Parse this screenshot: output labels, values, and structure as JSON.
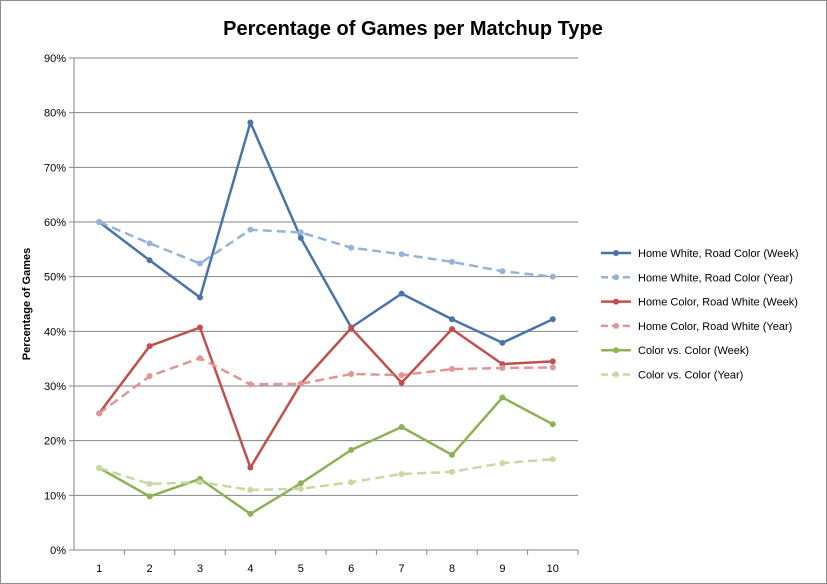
{
  "chart_data": {
    "type": "line",
    "title": "Percentage of Games per Matchup Type",
    "xlabel": "",
    "ylabel": "Percentage of Games",
    "x": [
      1,
      2,
      3,
      4,
      5,
      6,
      7,
      8,
      9,
      10
    ],
    "ylim": [
      0,
      90
    ],
    "yticks": [
      "0%",
      "10%",
      "20%",
      "30%",
      "40%",
      "50%",
      "60%",
      "70%",
      "80%",
      "90%"
    ],
    "grid": "horizontal",
    "legend_position": "right",
    "series": [
      {
        "name": "Home White, Road Color (Week)",
        "color": "#4a74a8",
        "style": "solid",
        "values": [
          60,
          53,
          46.2,
          78.2,
          57.1,
          40.7,
          46.9,
          42.2,
          37.9,
          42.2
        ]
      },
      {
        "name": "Home White, Road Color (Year)",
        "color": "#95b3d7",
        "style": "dashed",
        "values": [
          60,
          56.1,
          52.4,
          58.6,
          58.1,
          55.3,
          54.1,
          52.7,
          51,
          50
        ]
      },
      {
        "name": "Home Color, Road White (Week)",
        "color": "#c0504d",
        "style": "solid",
        "values": [
          25,
          37.3,
          40.7,
          15.1,
          30.4,
          40.6,
          30.6,
          40.4,
          34,
          34.5
        ]
      },
      {
        "name": "Home Color, Road White (Year)",
        "color": "#df9796",
        "style": "dashed",
        "values": [
          25,
          31.8,
          35.1,
          30.3,
          30.4,
          32.2,
          32,
          33.1,
          33.3,
          33.4
        ]
      },
      {
        "name": "Color vs. Color (Week)",
        "color": "#8db255",
        "style": "solid",
        "values": [
          15,
          9.8,
          13,
          6.6,
          12.2,
          18.3,
          22.5,
          17.4,
          27.9,
          23
        ]
      },
      {
        "name": "Color vs. Color (Year)",
        "color": "#c5d9a0",
        "style": "dashed",
        "values": [
          15,
          12.1,
          12.4,
          11,
          11.2,
          12.4,
          13.9,
          14.3,
          15.9,
          16.6
        ]
      }
    ]
  }
}
